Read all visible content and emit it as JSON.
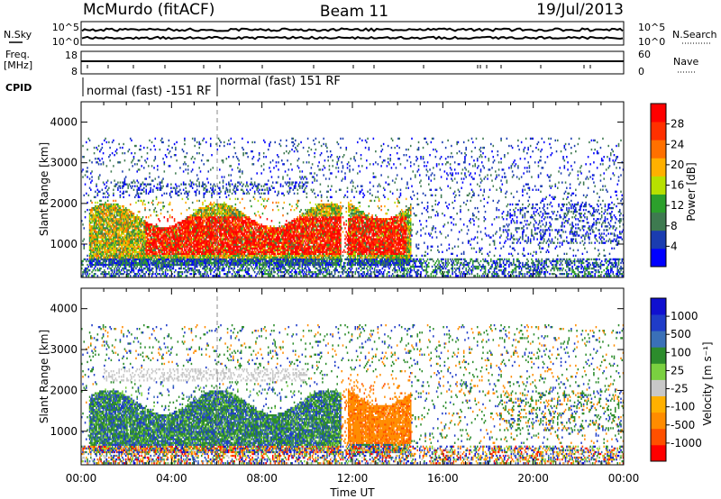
{
  "header": {
    "station": "McMurdo (fitACF)",
    "beam": "Beam 11",
    "date": "19/Jul/2013"
  },
  "noise_panel": {
    "left_label": "N.Sky",
    "left_ticks": [
      "10^5",
      "10^0"
    ],
    "right_label": "N.Search",
    "right_ticks": [
      "10^5",
      "10^0"
    ]
  },
  "freq_panel": {
    "left_label_1": "Freq.",
    "left_label_2": "[MHz]",
    "left_ticks": [
      "18",
      "8"
    ],
    "right_label": "Nave",
    "right_ticks": [
      "60",
      "0"
    ]
  },
  "cpid_panel": {
    "label": "CPID",
    "segments": [
      "normal (fast) -151 RF",
      "normal (fast) 151 RF"
    ]
  },
  "colors": {
    "power_scale": [
      "#0000ff",
      "#1a3cb0",
      "#3e7a50",
      "#2ca02c",
      "#b8e000",
      "#ffb000",
      "#ff7000",
      "#ff3000",
      "#ff0000"
    ],
    "velocity_scale": [
      "#ff0000",
      "#ff5000",
      "#ff8c00",
      "#ffb000",
      "#c8c8c8",
      "#7ad040",
      "#2c8c2c",
      "#3a70b8",
      "#1f3cc8",
      "#1010d0"
    ]
  },
  "chart_data": [
    {
      "type": "heatmap",
      "panel": "power",
      "xlabel": "",
      "ylabel": "Slant Range [km]",
      "xlim": [
        0,
        24
      ],
      "ylim": [
        180,
        4500
      ],
      "yticks": [
        "1000",
        "2000",
        "3000",
        "4000"
      ],
      "colorbar": {
        "label": "Power [dB]",
        "tick_labels": [
          "4",
          "8",
          "12",
          "16",
          "20",
          "24",
          "28"
        ],
        "range": [
          0,
          30
        ]
      },
      "regions": [
        {
          "t0": 0.3,
          "t1": 14.6,
          "r0": 300,
          "r1": 2100,
          "level": "strong",
          "note": "main echo band"
        },
        {
          "t0": 2.8,
          "t1": 11.5,
          "r0": 600,
          "r1": 1800,
          "level": "peak"
        },
        {
          "t0": 11.8,
          "t1": 14.4,
          "r0": 700,
          "r1": 2000,
          "level": "peak"
        },
        {
          "t0": 0.0,
          "t1": 24.0,
          "r0": 200,
          "r1": 700,
          "level": "weak"
        },
        {
          "t0": 0.0,
          "t1": 24.0,
          "r0": 700,
          "r1": 3600,
          "level": "scattered"
        }
      ]
    },
    {
      "type": "heatmap",
      "panel": "velocity",
      "xlabel": "Time UT",
      "ylabel": "Slant Range [km]",
      "xlim": [
        0,
        24
      ],
      "ylim": [
        180,
        4500
      ],
      "xticks": [
        "00:00",
        "04:00",
        "08:00",
        "12:00",
        "16:00",
        "20:00",
        "00:00"
      ],
      "yticks": [
        "1000",
        "2000",
        "3000",
        "4000"
      ],
      "colorbar": {
        "label": "Velocity [m s⁻¹]",
        "tick_labels": [
          "-1000",
          "-500",
          "-100",
          "-25",
          "25",
          "100",
          "500",
          "1000"
        ],
        "range": [
          -1200,
          1200
        ]
      },
      "regions": [
        {
          "t0": 0.3,
          "t1": 11.5,
          "r0": 500,
          "r1": 2000,
          "level": "mixed",
          "note": "green and blue"
        },
        {
          "t0": 11.5,
          "t1": 14.6,
          "r0": 700,
          "r1": 2400,
          "level": "away",
          "note": "orange"
        },
        {
          "t0": 0.0,
          "t1": 24.0,
          "r0": 200,
          "r1": 700,
          "level": "mixed"
        },
        {
          "t0": 0.0,
          "t1": 24.0,
          "r0": 700,
          "r1": 3600,
          "level": "scattered"
        }
      ]
    }
  ]
}
